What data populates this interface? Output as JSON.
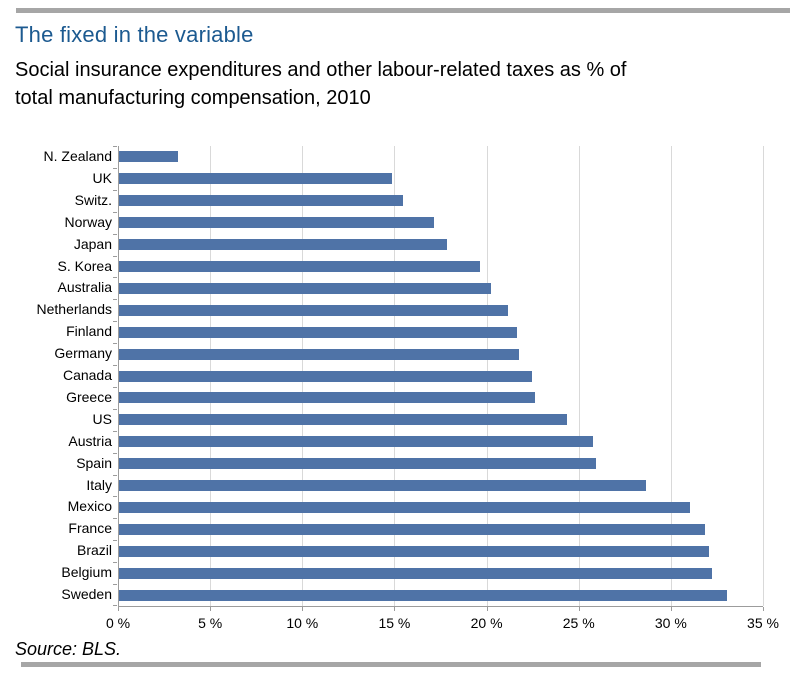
{
  "header": {
    "title": "The fixed in the variable",
    "subtitle_lines": [
      "Social insurance expenditures and other labour-related taxes as % of",
      "total manufacturing compensation, 2010"
    ]
  },
  "chart_data": {
    "type": "bar",
    "orientation": "horizontal",
    "title": "The fixed in the variable",
    "subtitle": "Social insurance expenditures and other labour-related taxes as % of total manufacturing compensation, 2010",
    "categories": [
      "N. Zealand",
      "UK",
      "Switz.",
      "Norway",
      "Japan",
      "S. Korea",
      "Australia",
      "Netherlands",
      "Finland",
      "Germany",
      "Canada",
      "Greece",
      "US",
      "Austria",
      "Spain",
      "Italy",
      "Mexico",
      "France",
      "Brazil",
      "Belgium",
      "Sweden"
    ],
    "values": [
      3.2,
      14.8,
      15.4,
      17.1,
      17.8,
      19.6,
      20.2,
      21.1,
      21.6,
      21.7,
      22.4,
      22.6,
      24.3,
      25.7,
      25.9,
      28.6,
      31.0,
      31.8,
      32.0,
      32.2,
      33.0
    ],
    "xlabel": "",
    "ylabel": "",
    "xlim": [
      0,
      35
    ],
    "x_ticks": [
      0,
      5,
      10,
      15,
      20,
      25,
      30,
      35
    ],
    "x_tick_labels": [
      "0 %",
      "5 %",
      "10 %",
      "15 %",
      "20 %",
      "25 %",
      "30 %",
      "35 %"
    ],
    "grid": true,
    "legend": "none",
    "bar_color": "#4f73a7"
  },
  "footer": {
    "source": "Source: BLS."
  },
  "colors": {
    "bar": "#4f73a7",
    "title": "#1c5a90",
    "rule": "#a6a6a6",
    "gridline": "#d9d9d9",
    "axis": "#9c9c9c",
    "text": "#000000"
  }
}
